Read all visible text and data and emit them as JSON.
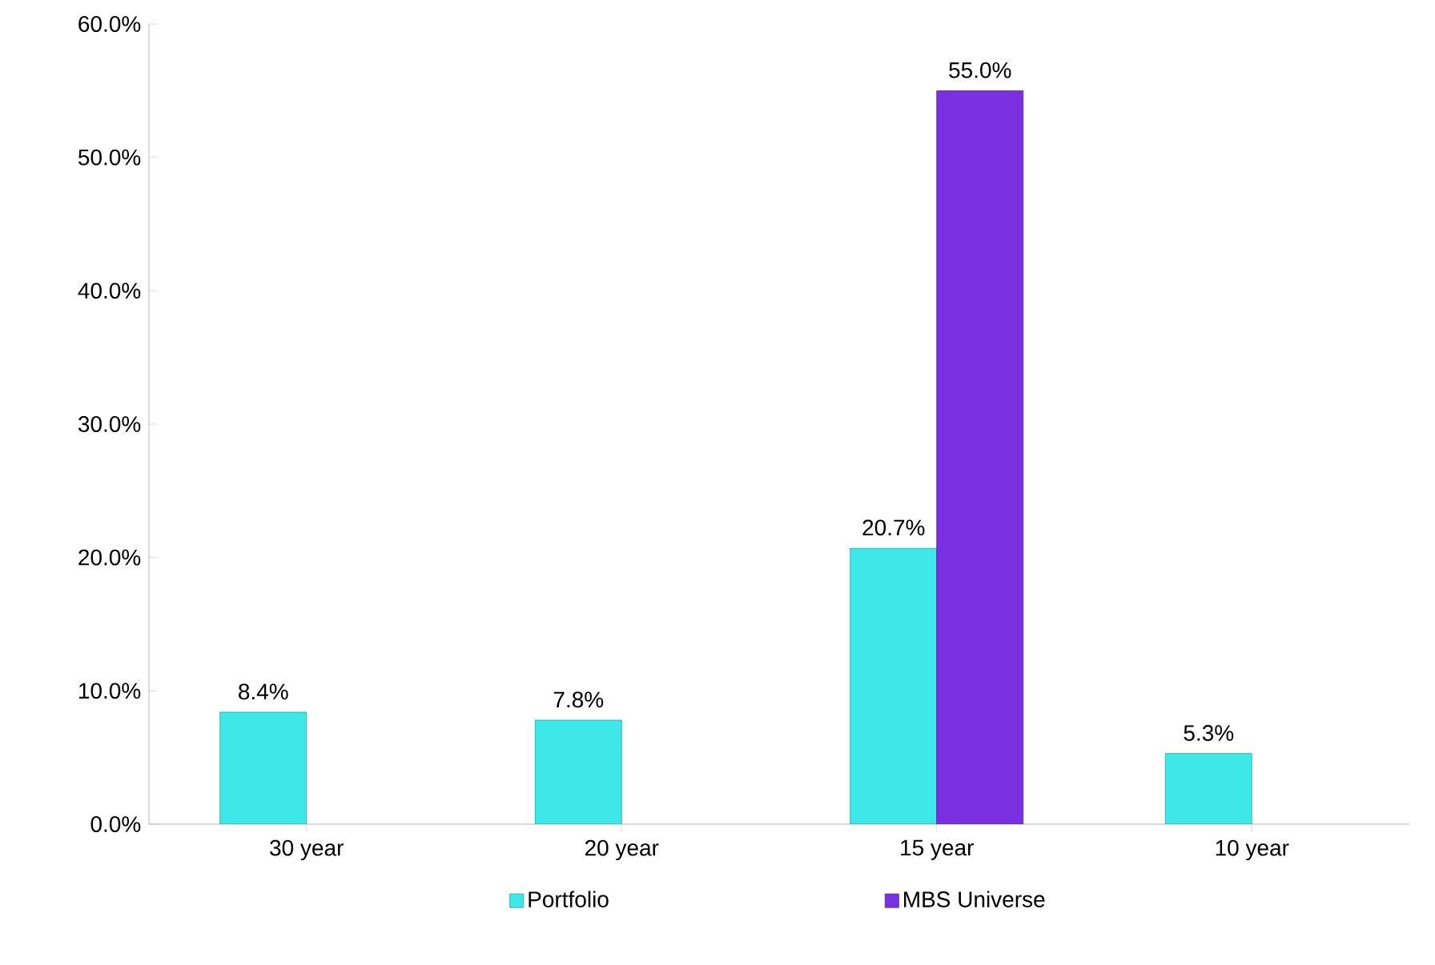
{
  "chart_data": {
    "type": "bar",
    "categories": [
      "30 year",
      "20 year",
      "15 year",
      "10 year"
    ],
    "series": [
      {
        "name": "Portfolio",
        "color": "#3ee8e8",
        "values": [
          8.4,
          7.8,
          20.7,
          5.3
        ],
        "value_labels": [
          "8.4%",
          "7.8%",
          "20.7%",
          "5.3%"
        ]
      },
      {
        "name": "MBS Universe",
        "color": "#7a2fe0",
        "values": [
          null,
          null,
          55.0,
          null
        ],
        "value_labels": [
          null,
          null,
          "55.0%",
          null
        ]
      }
    ],
    "ylim": [
      0,
      60
    ],
    "yticks": [
      {
        "value": 0,
        "label": "0.0%"
      },
      {
        "value": 10,
        "label": "10.0%"
      },
      {
        "value": 20,
        "label": "20.0%"
      },
      {
        "value": 30,
        "label": "30.0%"
      },
      {
        "value": 40,
        "label": "40.0%"
      },
      {
        "value": 50,
        "label": "50.0%"
      },
      {
        "value": 60,
        "label": "60.0%"
      }
    ],
    "grid": false,
    "legend": "bottom"
  }
}
